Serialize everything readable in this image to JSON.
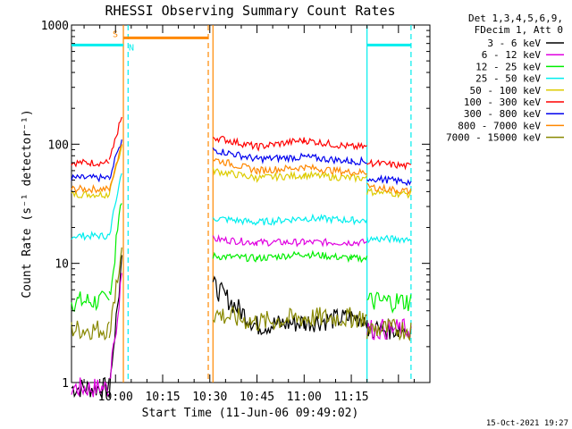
{
  "chart_data": {
    "type": "line",
    "title": "RHESSI Observing Summary Count Rates",
    "xlabel": "Start Time (11-Jun-06 09:49:02)",
    "ylabel": "Count Rate (s⁻¹ detector⁻¹)",
    "yscale": "log",
    "ylim": [
      1,
      1000
    ],
    "xlim_minutes": [
      -14,
      100
    ],
    "x_tick_labels": [
      "10:00",
      "10:15",
      "10:30",
      "10:45",
      "11:00",
      "11:15"
    ],
    "x_tick_minutes": [
      0,
      15,
      30,
      45,
      60,
      75
    ],
    "y_tick_labels": [
      "1",
      "10",
      "100",
      "1000"
    ],
    "y_tick_values": [
      1,
      10,
      100,
      1000
    ],
    "legend_header": [
      "Det 1,3,4,5,6,9,",
      "FDecim 1, Att 0"
    ],
    "legend_position": "right",
    "timestamp": "15-Oct-2021 19:27",
    "series": [
      {
        "name": "3 - 6 keV",
        "color": "#000000"
      },
      {
        "name": "6 - 12 keV",
        "color": "#e000e0"
      },
      {
        "name": "12 - 25 keV",
        "color": "#00ee00"
      },
      {
        "name": "25 - 50 keV",
        "color": "#00eeee"
      },
      {
        "name": "50 - 100 keV",
        "color": "#ddcc00"
      },
      {
        "name": "100 - 300 keV",
        "color": "#ff0000"
      },
      {
        "name": "300 - 800 keV",
        "color": "#0000ee"
      },
      {
        "name": "800 - 7000 keV",
        "color": "#ff8800"
      },
      {
        "name": "7000 - 15000 keV",
        "color": "#888800"
      }
    ],
    "segments": [
      {
        "x": [
          -14,
          -2
        ],
        "values": {
          "3 - 6 keV": [
            0.9,
            0.9
          ],
          "6 - 12 keV": [
            0.9,
            0.9
          ],
          "12 - 25 keV": [
            4.8,
            4.8
          ],
          "25 - 50 keV": [
            17,
            17
          ],
          "50 - 100 keV": [
            38,
            38
          ],
          "100 - 300 keV": [
            70,
            70
          ],
          "300 - 800 keV": [
            52,
            52
          ],
          "800 - 7000 keV": [
            42,
            42
          ],
          "7000 - 15000 keV": [
            2.8,
            2.8
          ]
        }
      },
      {
        "x": [
          -2,
          2
        ],
        "values": {
          "3 - 6 keV": [
            0.9,
            10
          ],
          "6 - 12 keV": [
            0.9,
            8
          ],
          "12 - 25 keV": [
            4.8,
            35
          ],
          "25 - 50 keV": [
            17,
            60
          ],
          "50 - 100 keV": [
            38,
            100
          ],
          "100 - 300 keV": [
            70,
            175
          ],
          "300 - 800 keV": [
            52,
            110
          ],
          "800 - 7000 keV": [
            42,
            100
          ],
          "7000 - 15000 keV": [
            2.8,
            14
          ]
        }
      },
      {
        "x": [
          31,
          45,
          60,
          75,
          80
        ],
        "values": {
          "3 - 6 keV": [
            6.5,
            3,
            3.2,
            3.5,
            3.5
          ],
          "6 - 12 keV": [
            16,
            15,
            15,
            15,
            15
          ],
          "12 - 25 keV": [
            11.5,
            11,
            12,
            11,
            11
          ],
          "25 - 50 keV": [
            24,
            22,
            24,
            23,
            23
          ],
          "50 - 100 keV": [
            60,
            52,
            55,
            52,
            52
          ],
          "100 - 300 keV": [
            115,
            95,
            108,
            95,
            95
          ],
          "300 - 800 keV": [
            90,
            75,
            78,
            72,
            72
          ],
          "800 - 7000 keV": [
            75,
            60,
            64,
            58,
            58
          ],
          "7000 - 15000 keV": [
            3.8,
            3.2,
            3.5,
            3.5,
            3.5
          ]
        }
      },
      {
        "x": [
          80,
          94
        ],
        "values": {
          "3 - 6 keV": [
            2.8,
            2.8
          ],
          "6 - 12 keV": [
            2.8,
            2.8
          ],
          "12 - 25 keV": [
            4.8,
            4.8
          ],
          "25 - 50 keV": [
            16,
            16
          ],
          "50 - 100 keV": [
            40,
            38
          ],
          "100 - 300 keV": [
            70,
            65
          ],
          "300 - 800 keV": [
            52,
            48
          ],
          "800 - 7000 keV": [
            44,
            40
          ],
          "7000 - 15000 keV": [
            2.8,
            2.8
          ]
        }
      }
    ],
    "annotations": [
      {
        "label": "S",
        "color": "#ff8800",
        "x_start": 2.5,
        "x_end": 29.5,
        "y": 780
      },
      {
        "label": "N",
        "color": "#00eeee",
        "x_start": -14,
        "x_end": 2.5,
        "y": 680
      },
      {
        "label": "",
        "color": "#00eeee",
        "x_start": 80,
        "x_end": 94,
        "y": 680
      }
    ],
    "vertical_markers": [
      {
        "x": 2.5,
        "color": "#ff8800",
        "style": "solid"
      },
      {
        "x": 4,
        "color": "#00eeee",
        "style": "dashed"
      },
      {
        "x": 29.5,
        "color": "#ff8800",
        "style": "dashed"
      },
      {
        "x": 31,
        "color": "#ff8800",
        "style": "solid"
      },
      {
        "x": 80,
        "color": "#00eeee",
        "style": "solid"
      },
      {
        "x": 94,
        "color": "#00eeee",
        "style": "dashed"
      }
    ]
  }
}
